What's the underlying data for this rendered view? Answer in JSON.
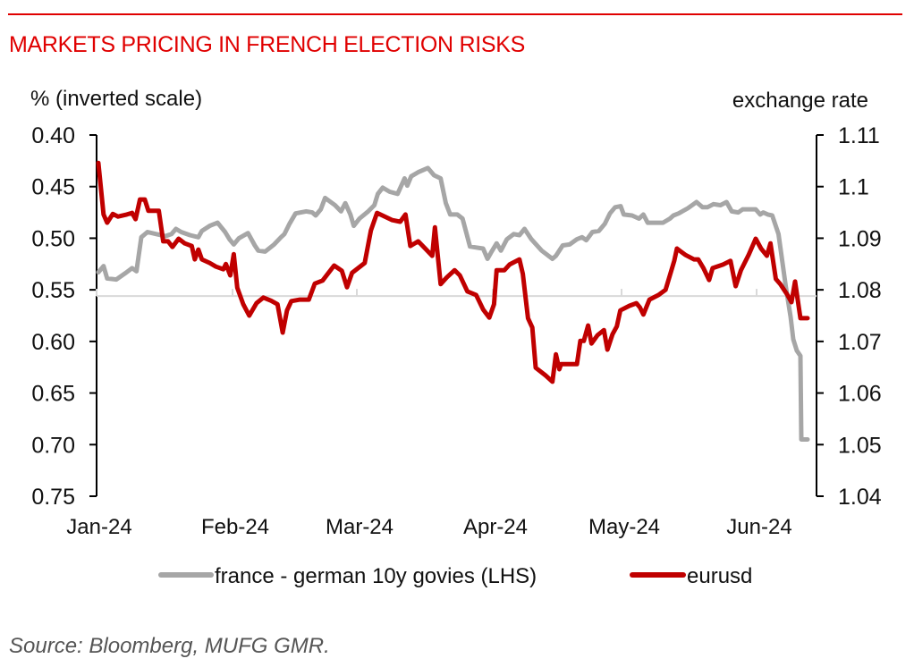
{
  "header": {
    "title": "MARKETS PRICING IN FRENCH ELECTION RISKS"
  },
  "footer": {
    "source": "Source: Bloomberg, MUFG GMR."
  },
  "chart_data": {
    "type": "line",
    "title": "MARKETS PRICING IN FRENCH ELECTION RISKS",
    "x_unit": "day of year 2024 (Jan 1 = 0)",
    "x_ticks": [
      {
        "label": "Jan-24",
        "day": 0
      },
      {
        "label": "Feb-24",
        "day": 31
      },
      {
        "label": "Mar-24",
        "day": 60
      },
      {
        "label": "Apr-24",
        "day": 91
      },
      {
        "label": "May-24",
        "day": 121
      },
      {
        "label": "Jun-24",
        "day": 152
      }
    ],
    "y_left": {
      "label": "% (inverted scale)",
      "range": [
        0.4,
        0.75
      ],
      "inverted": true,
      "ticks": [
        "0.40",
        "0.45",
        "0.50",
        "0.55",
        "0.60",
        "0.65",
        "0.70",
        "0.75"
      ],
      "tick_values": [
        0.4,
        0.45,
        0.5,
        0.55,
        0.6,
        0.65,
        0.7,
        0.75
      ]
    },
    "y_right": {
      "label": "exchange rate",
      "range": [
        1.04,
        1.11
      ],
      "ticks": [
        "1.11",
        "1.1",
        "1.09",
        "1.08",
        "1.07",
        "1.06",
        "1.05",
        "1.04"
      ],
      "tick_values": [
        1.11,
        1.1,
        1.09,
        1.08,
        1.07,
        1.06,
        1.05,
        1.04
      ]
    },
    "x_axis_crosses_left_at": 0.556,
    "legend_position": "bottom-center",
    "series": [
      {
        "name": "france - german 10y govies (LHS)",
        "axis": "left",
        "color": "#a6a6a6",
        "points": [
          [
            0.4,
            0.533
          ],
          [
            1.6,
            0.527
          ],
          [
            2.4,
            0.539
          ],
          [
            4.5,
            0.54
          ],
          [
            6.5,
            0.534
          ],
          [
            8.1,
            0.529
          ],
          [
            9.1,
            0.532
          ],
          [
            10.2,
            0.499
          ],
          [
            11.6,
            0.494
          ],
          [
            13.6,
            0.496
          ],
          [
            15.7,
            0.498
          ],
          [
            17.1,
            0.496
          ],
          [
            18.1,
            0.491
          ],
          [
            19.3,
            0.494
          ],
          [
            21.3,
            0.497
          ],
          [
            23.2,
            0.499
          ],
          [
            24.0,
            0.493
          ],
          [
            25.8,
            0.488
          ],
          [
            27.6,
            0.485
          ],
          [
            29.3,
            0.494
          ],
          [
            30.3,
            0.501
          ],
          [
            31.3,
            0.506
          ],
          [
            32.5,
            0.5
          ],
          [
            34.6,
            0.495
          ],
          [
            36.2,
            0.507
          ],
          [
            37.0,
            0.512
          ],
          [
            38.6,
            0.513
          ],
          [
            40.7,
            0.506
          ],
          [
            42.3,
            0.499
          ],
          [
            43.1,
            0.496
          ],
          [
            44.3,
            0.486
          ],
          [
            45.7,
            0.476
          ],
          [
            48.2,
            0.474
          ],
          [
            49.6,
            0.475
          ],
          [
            50.4,
            0.478
          ],
          [
            51.6,
            0.472
          ],
          [
            52.6,
            0.461
          ],
          [
            54.9,
            0.468
          ],
          [
            56.3,
            0.474
          ],
          [
            57.3,
            0.466
          ],
          [
            58.5,
            0.477
          ],
          [
            59.3,
            0.488
          ],
          [
            60.6,
            0.481
          ],
          [
            62.6,
            0.474
          ],
          [
            64.0,
            0.468
          ],
          [
            64.8,
            0.457
          ],
          [
            65.9,
            0.451
          ],
          [
            67.5,
            0.455
          ],
          [
            69.3,
            0.457
          ],
          [
            70.9,
            0.442
          ],
          [
            71.5,
            0.449
          ],
          [
            72.4,
            0.44
          ],
          [
            74.0,
            0.436
          ],
          [
            76.2,
            0.432
          ],
          [
            77.6,
            0.439
          ],
          [
            79.1,
            0.442
          ],
          [
            80.3,
            0.466
          ],
          [
            81.3,
            0.477
          ],
          [
            82.9,
            0.477
          ],
          [
            84.1,
            0.481
          ],
          [
            85.8,
            0.508
          ],
          [
            87.2,
            0.509
          ],
          [
            88.8,
            0.51
          ],
          [
            89.8,
            0.52
          ],
          [
            90.6,
            0.514
          ],
          [
            91.9,
            0.505
          ],
          [
            92.9,
            0.512
          ],
          [
            94.3,
            0.501
          ],
          [
            95.9,
            0.496
          ],
          [
            97.2,
            0.497
          ],
          [
            98.4,
            0.491
          ],
          [
            100.0,
            0.501
          ],
          [
            102.4,
            0.512
          ],
          [
            104.9,
            0.52
          ],
          [
            105.7,
            0.517
          ],
          [
            107.3,
            0.507
          ],
          [
            108.9,
            0.506
          ],
          [
            110.6,
            0.501
          ],
          [
            111.8,
            0.499
          ],
          [
            112.8,
            0.502
          ],
          [
            114.2,
            0.494
          ],
          [
            115.7,
            0.493
          ],
          [
            117.1,
            0.486
          ],
          [
            118.3,
            0.476
          ],
          [
            119.5,
            0.47
          ],
          [
            120.8,
            0.469
          ],
          [
            121.5,
            0.477
          ],
          [
            123.4,
            0.478
          ],
          [
            125.0,
            0.481
          ],
          [
            126.0,
            0.477
          ],
          [
            127.0,
            0.485
          ],
          [
            128.5,
            0.485
          ],
          [
            130.5,
            0.485
          ],
          [
            132.1,
            0.481
          ],
          [
            132.9,
            0.478
          ],
          [
            134.1,
            0.476
          ],
          [
            136.2,
            0.471
          ],
          [
            138.2,
            0.465
          ],
          [
            139.6,
            0.47
          ],
          [
            140.7,
            0.47
          ],
          [
            142.1,
            0.467
          ],
          [
            143.7,
            0.468
          ],
          [
            145.1,
            0.465
          ],
          [
            146.3,
            0.474
          ],
          [
            147.8,
            0.475
          ],
          [
            148.8,
            0.472
          ],
          [
            151.8,
            0.472
          ],
          [
            152.8,
            0.477
          ],
          [
            153.5,
            0.475
          ],
          [
            154.5,
            0.477
          ],
          [
            155.5,
            0.478
          ],
          [
            156.9,
            0.496
          ],
          [
            158.5,
            0.546
          ],
          [
            159.6,
            0.576
          ],
          [
            160.2,
            0.598
          ],
          [
            161.0,
            0.609
          ],
          [
            161.8,
            0.614
          ],
          [
            162.0,
            0.695
          ],
          [
            163.4,
            0.695
          ]
        ]
      },
      {
        "name": "eurusd",
        "axis": "right",
        "color": "#c00000",
        "points": [
          [
            0.4,
            1.1046
          ],
          [
            1.6,
            1.0946
          ],
          [
            2.4,
            1.093
          ],
          [
            3.7,
            1.0947
          ],
          [
            4.9,
            1.0942
          ],
          [
            6.9,
            1.0946
          ],
          [
            8.1,
            1.0949
          ],
          [
            8.9,
            1.0937
          ],
          [
            9.9,
            1.0975
          ],
          [
            11.0,
            1.0975
          ],
          [
            11.8,
            1.0953
          ],
          [
            14.2,
            1.0953
          ],
          [
            15.2,
            1.0894
          ],
          [
            16.3,
            1.0894
          ],
          [
            17.3,
            1.0883
          ],
          [
            18.7,
            1.0899
          ],
          [
            20.1,
            1.089
          ],
          [
            21.7,
            1.0885
          ],
          [
            22.4,
            1.0859
          ],
          [
            23.2,
            1.0878
          ],
          [
            24.0,
            1.0859
          ],
          [
            25.8,
            1.0852
          ],
          [
            27.2,
            1.0845
          ],
          [
            28.9,
            1.084
          ],
          [
            29.5,
            1.085
          ],
          [
            30.5,
            1.0828
          ],
          [
            31.3,
            1.0869
          ],
          [
            32.1,
            1.0804
          ],
          [
            33.5,
            1.0772
          ],
          [
            34.9,
            1.075
          ],
          [
            36.6,
            1.0774
          ],
          [
            38.2,
            1.0785
          ],
          [
            40.0,
            1.0779
          ],
          [
            41.5,
            1.0772
          ],
          [
            42.7,
            1.0717
          ],
          [
            43.7,
            1.076
          ],
          [
            44.7,
            1.0778
          ],
          [
            46.7,
            1.0781
          ],
          [
            48.8,
            1.0781
          ],
          [
            50.2,
            1.0812
          ],
          [
            52.0,
            1.0818
          ],
          [
            54.7,
            1.0847
          ],
          [
            56.5,
            1.0837
          ],
          [
            57.7,
            1.0805
          ],
          [
            58.9,
            1.0833
          ],
          [
            61.8,
            1.0852
          ],
          [
            63.2,
            1.0915
          ],
          [
            64.6,
            1.0949
          ],
          [
            68.1,
            1.0935
          ],
          [
            69.9,
            1.0932
          ],
          [
            71.1,
            1.0946
          ],
          [
            72.2,
            1.0885
          ],
          [
            74.0,
            1.0894
          ],
          [
            75.6,
            1.088
          ],
          [
            77.2,
            1.0866
          ],
          [
            77.8,
            1.0921
          ],
          [
            79.1,
            1.0811
          ],
          [
            80.5,
            1.0824
          ],
          [
            82.3,
            1.0838
          ],
          [
            83.5,
            1.0828
          ],
          [
            85.2,
            1.0797
          ],
          [
            87.2,
            1.079
          ],
          [
            88.8,
            1.0762
          ],
          [
            90.2,
            1.0746
          ],
          [
            91.3,
            1.0772
          ],
          [
            91.9,
            1.0838
          ],
          [
            93.7,
            1.0838
          ],
          [
            94.9,
            1.0849
          ],
          [
            97.2,
            1.0859
          ],
          [
            98.0,
            1.0831
          ],
          [
            99.2,
            1.0745
          ],
          [
            100.2,
            1.0727
          ],
          [
            101.0,
            1.0649
          ],
          [
            103.3,
            1.0634
          ],
          [
            104.9,
            1.0622
          ],
          [
            105.7,
            1.0675
          ],
          [
            106.5,
            1.0646
          ],
          [
            106.9,
            1.0656
          ],
          [
            108.5,
            1.0656
          ],
          [
            110.6,
            1.0656
          ],
          [
            111.4,
            1.0701
          ],
          [
            112.2,
            1.0701
          ],
          [
            113.2,
            1.0731
          ],
          [
            114.0,
            1.0696
          ],
          [
            115.4,
            1.0712
          ],
          [
            116.9,
            1.0722
          ],
          [
            117.7,
            1.0684
          ],
          [
            118.9,
            1.0714
          ],
          [
            119.9,
            1.0729
          ],
          [
            120.7,
            1.076
          ],
          [
            122.8,
            1.0769
          ],
          [
            124.4,
            1.0774
          ],
          [
            125.2,
            1.0766
          ],
          [
            126.0,
            1.0752
          ],
          [
            127.4,
            1.0781
          ],
          [
            129.5,
            1.079
          ],
          [
            131.1,
            1.08
          ],
          [
            133.1,
            1.0856
          ],
          [
            133.7,
            1.088
          ],
          [
            135.6,
            1.0868
          ],
          [
            137.6,
            1.0859
          ],
          [
            138.6,
            1.0859
          ],
          [
            139.8,
            1.0842
          ],
          [
            141.1,
            1.0819
          ],
          [
            141.9,
            1.0842
          ],
          [
            144.3,
            1.0849
          ],
          [
            146.0,
            1.0856
          ],
          [
            147.2,
            1.0807
          ],
          [
            148.4,
            1.0838
          ],
          [
            150.2,
            1.0868
          ],
          [
            151.8,
            1.0899
          ],
          [
            153.0,
            1.088
          ],
          [
            154.3,
            1.0866
          ],
          [
            155.1,
            1.089
          ],
          [
            156.3,
            1.0821
          ],
          [
            157.3,
            1.0811
          ],
          [
            158.9,
            1.079
          ],
          [
            159.8,
            1.0776
          ],
          [
            160.6,
            1.0816
          ],
          [
            161.8,
            1.0745
          ],
          [
            163.4,
            1.0745
          ]
        ]
      }
    ]
  }
}
